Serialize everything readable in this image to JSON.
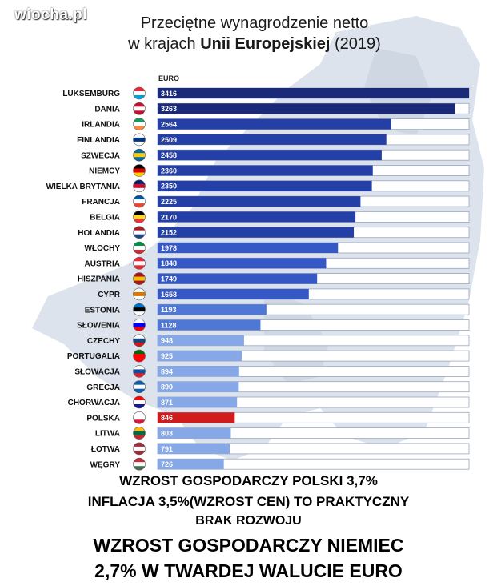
{
  "watermark": "wiocha.pl",
  "header": {
    "title_line1": "Przeciętne wynagrodzenie netto",
    "title_line2_pre": "w krajach ",
    "title_line2_bold": "Unii Europejskiej",
    "title_line2_post": " (2019)"
  },
  "chart_data": {
    "type": "bar",
    "orientation": "horizontal",
    "unit": "EURO",
    "categories": [
      "LUKSEMBURG",
      "DANIA",
      "IRLANDIA",
      "FINLANDIA",
      "SZWECJA",
      "NIEMCY",
      "WIELKA BRYTANIA",
      "FRANCJA",
      "BELGIA",
      "HOLANDIA",
      "WŁOCHY",
      "AUSTRIA",
      "HISZPANIA",
      "CYPR",
      "ESTONIA",
      "SŁOWENIA",
      "CZECHY",
      "PORTUGALIA",
      "SŁOWACJA",
      "GRECJA",
      "CHORWACJA",
      "POLSKA",
      "LITWA",
      "ŁOTWA",
      "WĘGRY"
    ],
    "values": [
      3416,
      3263,
      2564,
      2509,
      2458,
      2360,
      2350,
      2225,
      2170,
      2152,
      1978,
      1848,
      1749,
      1658,
      1193,
      1128,
      948,
      925,
      894,
      890,
      871,
      846,
      803,
      791,
      726
    ],
    "value_labels": [
      "3416",
      "3263",
      "2564",
      "2509",
      "2458",
      "2360",
      "2350",
      "2225",
      "2170",
      "2152",
      "1978",
      "1848",
      "1749",
      "1658",
      "1193",
      "1128",
      "948",
      "925",
      "894",
      "890",
      "871",
      "846",
      "803",
      "791",
      "726"
    ],
    "xlim": [
      0,
      3416
    ],
    "highlight": "POLSKA",
    "colors": {
      "tier1": "#1b2a78",
      "tier2": "#243fa6",
      "tier3": "#3558c4",
      "tier4": "#4f78d6",
      "tier5": "#86a8e6",
      "highlight": "#cf1b1b",
      "track": "#ffffff",
      "track_border": "#9aa6bf"
    },
    "flags": [
      [
        "#ed2939",
        "#ffffff",
        "#00a1de"
      ],
      [
        "#c8102e",
        "#ffffff",
        "#c8102e"
      ],
      [
        "#169b62",
        "#ffffff",
        "#ff883e"
      ],
      [
        "#ffffff",
        "#003580",
        "#ffffff"
      ],
      [
        "#006aa7",
        "#fecc00",
        "#006aa7"
      ],
      [
        "#000000",
        "#dd0000",
        "#ffce00"
      ],
      [
        "#012169",
        "#c8102e",
        "#ffffff"
      ],
      [
        "#0055a4",
        "#ffffff",
        "#ef4135"
      ],
      [
        "#000000",
        "#fdda24",
        "#ef3340"
      ],
      [
        "#ae1c28",
        "#ffffff",
        "#21468b"
      ],
      [
        "#009246",
        "#ffffff",
        "#ce2b37"
      ],
      [
        "#ed2939",
        "#ffffff",
        "#ed2939"
      ],
      [
        "#aa151b",
        "#f1bf00",
        "#aa151b"
      ],
      [
        "#ffffff",
        "#d57800",
        "#ffffff"
      ],
      [
        "#0072ce",
        "#000000",
        "#ffffff"
      ],
      [
        "#ffffff",
        "#0000ff",
        "#ff0000"
      ],
      [
        "#ffffff",
        "#11457e",
        "#d7141a"
      ],
      [
        "#006600",
        "#ff0000",
        "#ff0000"
      ],
      [
        "#ffffff",
        "#0b4ea2",
        "#ee1c25"
      ],
      [
        "#0d5eaf",
        "#ffffff",
        "#0d5eaf"
      ],
      [
        "#ff0000",
        "#ffffff",
        "#171796"
      ],
      [
        "#ffffff",
        "#ffffff",
        "#dc143c"
      ],
      [
        "#fdb913",
        "#006a44",
        "#c1272d"
      ],
      [
        "#9e3039",
        "#ffffff",
        "#9e3039"
      ],
      [
        "#ce2939",
        "#ffffff",
        "#477050"
      ]
    ]
  },
  "captions": [
    "WZROST GOSPODARCZY POLSKI 3,7%",
    "INFLACJA 3,5%(WZROST CEN) TO PRAKTYCZNY",
    "BRAK ROZWOJU",
    "WZROST GOSPODARCZY NIEMIEC",
    "2,7% W TWARDEJ WALUCIE EURO"
  ]
}
